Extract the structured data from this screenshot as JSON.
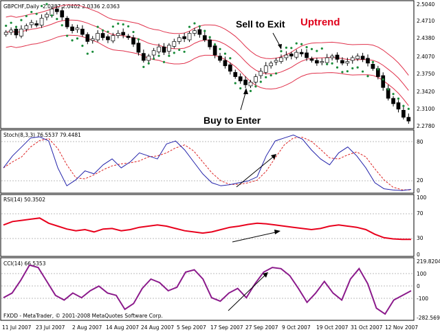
{
  "chart_header": {
    "symbol": "GBPCHF,Daily",
    "ohlc": "2.0387 2.0402 2.0336 2.0363"
  },
  "annotations": {
    "sell": "Sell to Exit",
    "buy": "Buy to Enter",
    "trend": "Uptrend"
  },
  "panels": {
    "stoch": {
      "label": "Stoch(8,3,3) 76.5537 79.4481",
      "ticks": [
        "80",
        "20",
        "0"
      ]
    },
    "rsi": {
      "label": "RSI(14) 50.3502",
      "ticks": [
        "100",
        "70",
        "30",
        "0"
      ]
    },
    "cci": {
      "label": "CCI(14) 66.5353",
      "ticks": [
        "219.8204",
        "100",
        "0",
        "-100",
        "-282.569"
      ]
    }
  },
  "price_axis": [
    "2.5040",
    "2.4710",
    "2.4380",
    "2.4070",
    "2.3750",
    "2.3420",
    "2.3100",
    "2.2780"
  ],
  "date_axis": [
    "11 Jul 2007",
    "23 Jul 2007",
    "2 Aug 2007",
    "14 Aug 2007",
    "24 Aug 2007",
    "5 Sep 2007",
    "17 Sep 2007",
    "27 Sep 2007",
    "9 Oct 2007",
    "19 Oct 2007",
    "31 Oct 2007",
    "12 Nov 2007"
  ],
  "copyright": "FXDD - MetaTrader, © 2001-2008 MetaQuotes Software Corp.",
  "colors": {
    "bullish": "#ffffff",
    "bearish": "#000000",
    "bollinger": "#e0304a",
    "psar": "#1a8c3a",
    "stoch_main": "#2222aa",
    "stoch_signal": "#dd2222",
    "rsi": "#e8001c",
    "cci": "#8b1a8b",
    "uptrend": "#e0001a"
  },
  "chart_data": [
    {
      "type": "candlestick",
      "title": "GBPCHF,Daily",
      "ylim": [
        2.278,
        2.504
      ],
      "candles_close": [
        2.452,
        2.456,
        2.447,
        2.458,
        2.464,
        2.47,
        2.465,
        2.478,
        2.485,
        2.495,
        2.49,
        2.48,
        2.462,
        2.455,
        2.46,
        2.448,
        2.435,
        2.44,
        2.45,
        2.442,
        2.438,
        2.446,
        2.45,
        2.447,
        2.442,
        2.43,
        2.415,
        2.4,
        2.408,
        2.418,
        2.425,
        2.415,
        2.428,
        2.435,
        2.442,
        2.44,
        2.45,
        2.455,
        2.448,
        2.438,
        2.425,
        2.41,
        2.4,
        2.39,
        2.38,
        2.37,
        2.362,
        2.355,
        2.36,
        2.37,
        2.38,
        2.39,
        2.395,
        2.4,
        2.405,
        2.41,
        2.408,
        2.415,
        2.412,
        2.405,
        2.4,
        2.395,
        2.398,
        2.405,
        2.408,
        2.402,
        2.395,
        2.398,
        2.405,
        2.408,
        2.402,
        2.395,
        2.385,
        2.37,
        2.35,
        2.33,
        2.32,
        2.31,
        2.295,
        2.288
      ],
      "bollinger": {
        "upper_start": 2.495,
        "lower_start": 2.445
      },
      "psar": "dots above/below price"
    },
    {
      "type": "line",
      "title": "Stoch(8,3,3)",
      "ylim": [
        0,
        100
      ],
      "series": [
        {
          "name": "main",
          "values": [
            40,
            60,
            75,
            90,
            92,
            85,
            40,
            10,
            20,
            35,
            30,
            45,
            55,
            40,
            50,
            65,
            60,
            55,
            80,
            85,
            70,
            50,
            30,
            15,
            10,
            12,
            15,
            18,
            25,
            60,
            85,
            90,
            95,
            88,
            70,
            55,
            45,
            65,
            75,
            60,
            40,
            15,
            5,
            3,
            2,
            4
          ]
        }
      ]
    },
    {
      "type": "line",
      "title": "RSI(14)",
      "ylim": [
        0,
        100
      ],
      "series": [
        {
          "name": "rsi",
          "values": [
            52,
            58,
            60,
            62,
            64,
            55,
            50,
            45,
            42,
            44,
            40,
            45,
            46,
            42,
            44,
            48,
            50,
            52,
            50,
            46,
            42,
            40,
            38,
            40,
            44,
            48,
            50,
            53,
            55,
            54,
            52,
            50,
            48,
            46,
            44,
            46,
            50,
            52,
            50,
            48,
            44,
            36,
            30,
            28,
            27,
            27
          ]
        }
      ]
    },
    {
      "type": "line",
      "title": "CCI(14)",
      "ylim": [
        -282.569,
        219.8204
      ],
      "series": [
        {
          "name": "cci",
          "values": [
            -100,
            -60,
            50,
            180,
            160,
            40,
            -80,
            -120,
            -60,
            -100,
            -40,
            0,
            -60,
            -80,
            -200,
            -150,
            -20,
            60,
            30,
            -40,
            -10,
            120,
            140,
            60,
            -100,
            -130,
            -60,
            -20,
            -100,
            20,
            120,
            160,
            150,
            90,
            -20,
            -140,
            -60,
            40,
            -60,
            -120,
            60,
            150,
            20,
            -190,
            -240,
            -120,
            -80,
            -40
          ]
        }
      ]
    }
  ]
}
